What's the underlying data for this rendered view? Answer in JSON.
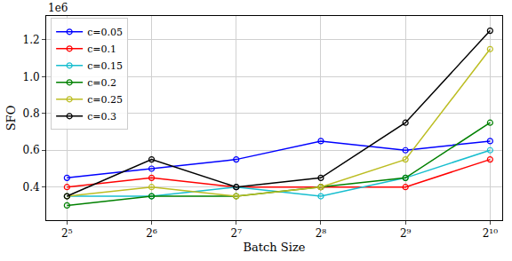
{
  "chart_data": {
    "type": "line",
    "x_label": "Batch Size",
    "y_label": "SFO",
    "annotations": [
      {
        "text": "1e6"
      }
    ],
    "x": [
      32,
      64,
      128,
      256,
      512,
      1024
    ],
    "log": "x",
    "xlim": [
      27,
      1131
    ],
    "xticks": [
      {
        "value": 32,
        "label": "2⁵"
      },
      {
        "value": 64,
        "label": "2⁶"
      },
      {
        "value": 128,
        "label": "2⁷"
      },
      {
        "value": 256,
        "label": "2⁸"
      },
      {
        "value": 512,
        "label": "2⁹"
      },
      {
        "value": 1024,
        "label": "2¹⁰"
      }
    ],
    "ylim": [
      0.22,
      1.33
    ],
    "yticks": [
      0.4,
      0.6,
      0.8,
      {
        "value": 1,
        "label": "1.0"
      },
      1.2
    ],
    "grid": true,
    "legend": "upper left",
    "marker": "circle",
    "series": [
      {
        "name": "c=0.05",
        "color": "#0000ff",
        "values": [
          0.45,
          0.5,
          0.55,
          0.65,
          0.6,
          0.65
        ]
      },
      {
        "name": "c=0.1",
        "color": "#ff0000",
        "values": [
          0.4,
          0.45,
          0.4,
          0.4,
          0.4,
          0.55
        ]
      },
      {
        "name": "c=0.15",
        "color": "#17becf",
        "values": [
          0.35,
          0.35,
          0.4,
          0.35,
          0.45,
          0.6
        ]
      },
      {
        "name": "c=0.2",
        "color": "#008000",
        "values": [
          0.3,
          0.35,
          0.35,
          0.4,
          0.45,
          0.75
        ]
      },
      {
        "name": "c=0.25",
        "color": "#bcbd22",
        "values": [
          0.35,
          0.4,
          0.35,
          0.4,
          0.55,
          1.15
        ]
      },
      {
        "name": "c=0.3",
        "color": "#000000",
        "values": [
          0.35,
          0.55,
          0.4,
          0.45,
          0.75,
          1.25
        ]
      }
    ]
  }
}
